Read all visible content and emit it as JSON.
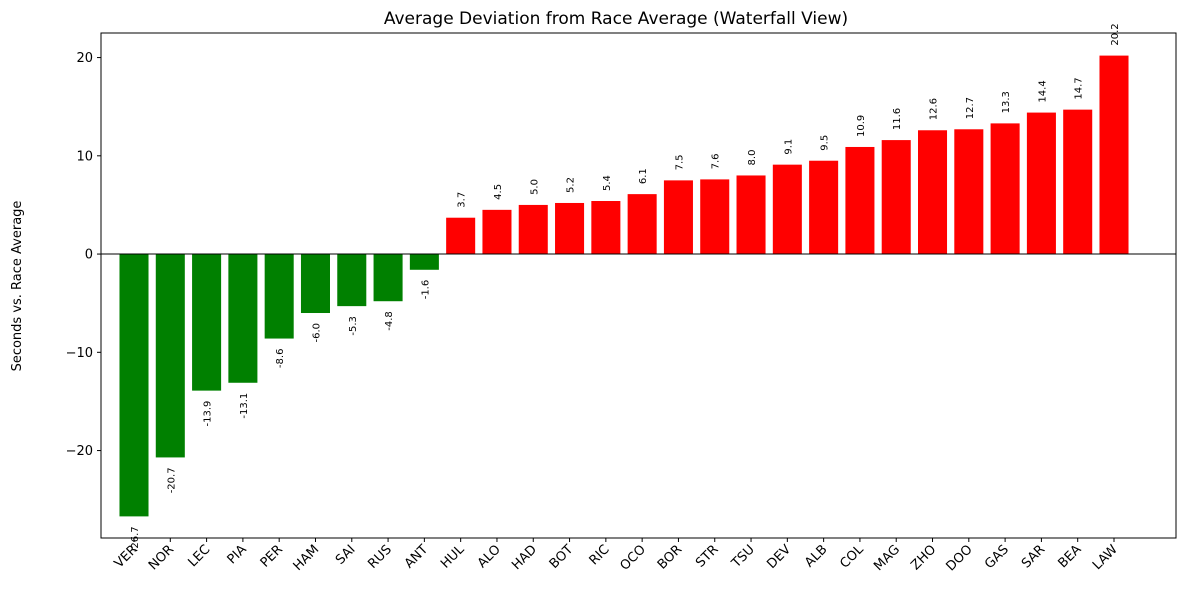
{
  "chart_data": {
    "type": "bar",
    "title": "Average Deviation from Race Average (Waterfall View)",
    "xlabel": "",
    "ylabel": "Seconds vs. Race Average",
    "ylim": [
      -28.9,
      22.5
    ],
    "yticks": [
      -20,
      -10,
      0,
      10,
      20
    ],
    "ytick_labels": [
      "−20",
      "−10",
      "0",
      "10",
      "20"
    ],
    "grid": false,
    "zero_line": true,
    "colors": {
      "negative": "#008000",
      "positive": "#ff0000",
      "axis": "#000000"
    },
    "categories": [
      "VER",
      "NOR",
      "LEC",
      "PIA",
      "PER",
      "HAM",
      "SAI",
      "RUS",
      "ANT",
      "HUL",
      "ALO",
      "HAD",
      "BOT",
      "RIC",
      "OCO",
      "BOR",
      "STR",
      "TSU",
      "DEV",
      "ALB",
      "COL",
      "MAG",
      "ZHO",
      "DOO",
      "GAS",
      "SAR",
      "BEA",
      "LAW"
    ],
    "values": [
      -26.7,
      -20.7,
      -13.9,
      -13.1,
      -8.6,
      -6.0,
      -5.3,
      -4.8,
      -1.6,
      3.7,
      4.5,
      5.0,
      5.2,
      5.4,
      6.1,
      7.5,
      7.6,
      8.0,
      9.1,
      9.5,
      10.9,
      11.6,
      12.6,
      12.7,
      13.3,
      14.4,
      14.7,
      20.2
    ],
    "data_labels": [
      "-26.7",
      "-20.7",
      "-13.9",
      "-13.1",
      "-8.6",
      "-6.0",
      "-5.3",
      "-4.8",
      "-1.6",
      "3.7",
      "4.5",
      "5.0",
      "5.2",
      "5.4",
      "6.1",
      "7.5",
      "7.6",
      "8.0",
      "9.1",
      "9.5",
      "10.9",
      "11.6",
      "12.6",
      "12.7",
      "13.3",
      "14.4",
      "14.7",
      "20.2"
    ]
  }
}
